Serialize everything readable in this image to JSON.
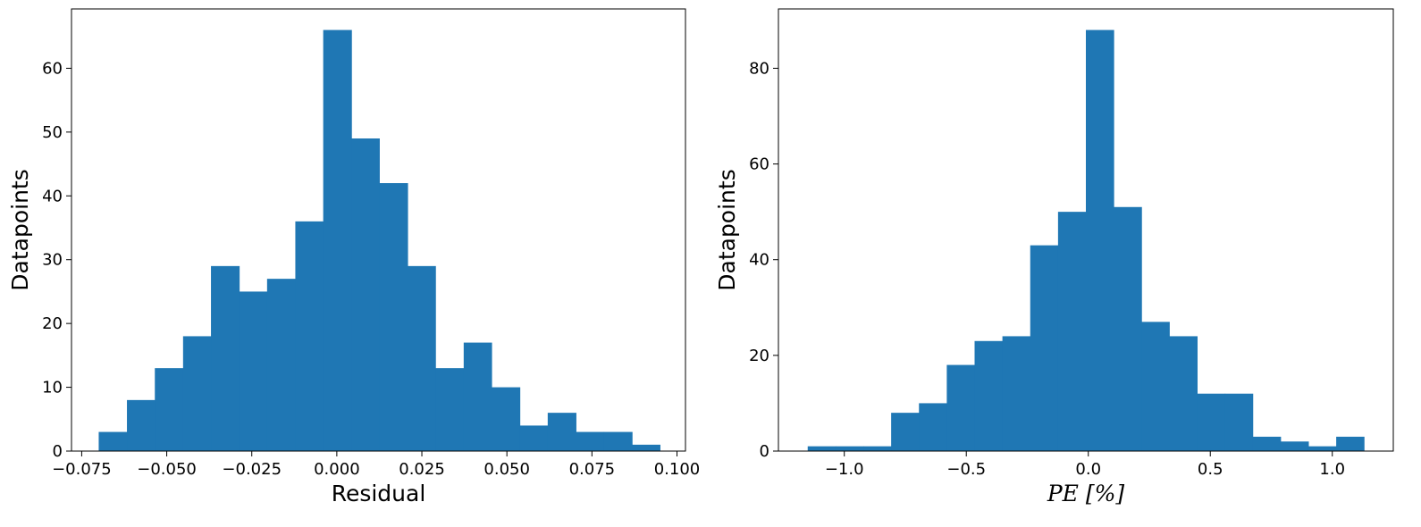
{
  "chart_data": [
    {
      "type": "bar",
      "xlabel": "Residual",
      "ylabel": "Datapoints",
      "xlim": [
        -0.078,
        0.1025
      ],
      "ylim": [
        0,
        69.3
      ],
      "xticks": [
        -0.075,
        -0.05,
        -0.025,
        0.0,
        0.025,
        0.05,
        0.075,
        0.1
      ],
      "xtick_labels": [
        "−0.075",
        "−0.050",
        "−0.025",
        "0.000",
        "0.025",
        "0.050",
        "0.075",
        "0.100"
      ],
      "yticks": [
        0,
        10,
        20,
        30,
        40,
        50,
        60
      ],
      "ytick_labels": [
        "0",
        "10",
        "20",
        "30",
        "40",
        "50",
        "60"
      ],
      "bin_edges": [
        -0.07,
        -0.0617,
        -0.0535,
        -0.0452,
        -0.037,
        -0.0287,
        -0.0205,
        -0.0122,
        -0.004,
        0.0043,
        0.0125,
        0.0208,
        0.029,
        0.0373,
        0.0455,
        0.0538,
        0.062,
        0.0703,
        0.0785,
        0.0868,
        0.095
      ],
      "values": [
        3,
        8,
        13,
        18,
        29,
        25,
        27,
        36,
        66,
        49,
        42,
        29,
        13,
        17,
        10,
        4,
        6,
        3,
        3,
        1
      ],
      "color": "#1f77b4"
    },
    {
      "type": "bar",
      "xlabel": "PE [%]",
      "ylabel": "Datapoints",
      "xlim": [
        -1.27,
        1.25
      ],
      "ylim": [
        0,
        92.4
      ],
      "xticks": [
        -1.0,
        -0.5,
        0.0,
        0.5,
        1.0
      ],
      "xtick_labels": [
        "−1.0",
        "−0.5",
        "0.0",
        "0.5",
        "1.0"
      ],
      "yticks": [
        0,
        20,
        40,
        60,
        80
      ],
      "ytick_labels": [
        "0",
        "20",
        "40",
        "60",
        "80"
      ],
      "bin_edges": [
        -1.15,
        -1.036,
        -0.922,
        -0.808,
        -0.694,
        -0.58,
        -0.466,
        -0.352,
        -0.238,
        -0.124,
        -0.01,
        0.104,
        0.218,
        0.332,
        0.446,
        0.56,
        0.674,
        0.788,
        0.902,
        1.016,
        1.13
      ],
      "values": [
        1,
        1,
        1,
        8,
        10,
        18,
        23,
        24,
        43,
        50,
        88,
        51,
        27,
        24,
        12,
        12,
        3,
        2,
        1,
        3
      ],
      "color": "#1f77b4"
    }
  ]
}
